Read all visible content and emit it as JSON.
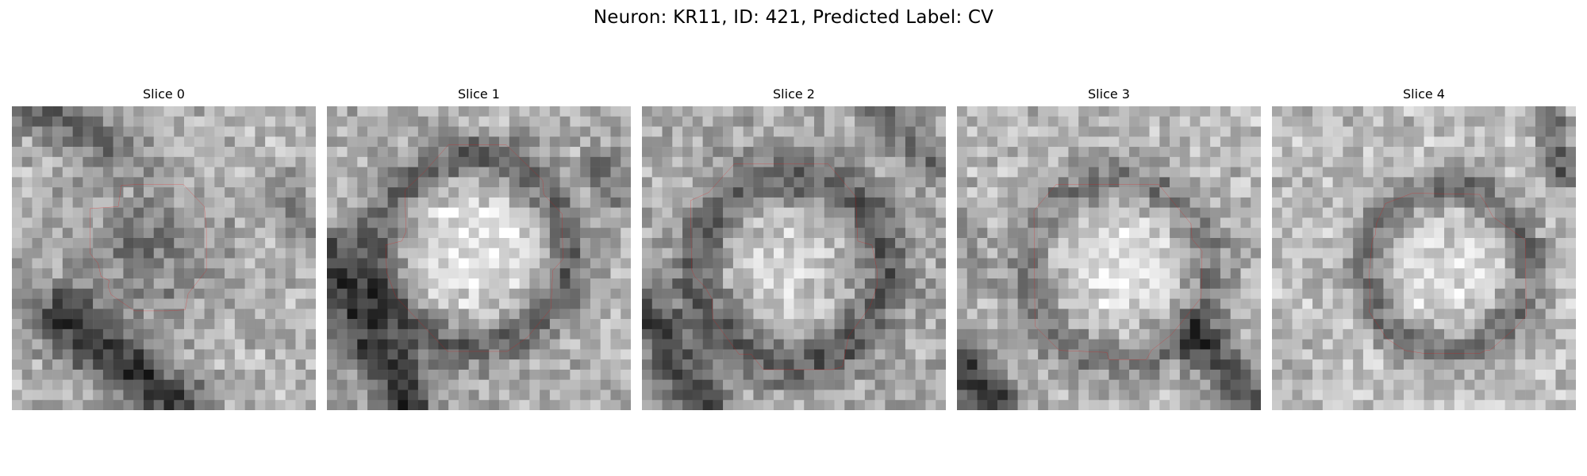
{
  "figure": {
    "title": "Neuron: KR11, ID: 421, Predicted Label: CV"
  },
  "panels": [
    {
      "title": "Slice 0",
      "outline_color": "#ff0000"
    },
    {
      "title": "Slice 1",
      "outline_color": "#ff0000"
    },
    {
      "title": "Slice 2",
      "outline_color": "#ff0000"
    },
    {
      "title": "Slice 3",
      "outline_color": "#ff0000"
    },
    {
      "title": "Slice 4",
      "outline_color": "#ff0000"
    }
  ],
  "colormap": "gray"
}
